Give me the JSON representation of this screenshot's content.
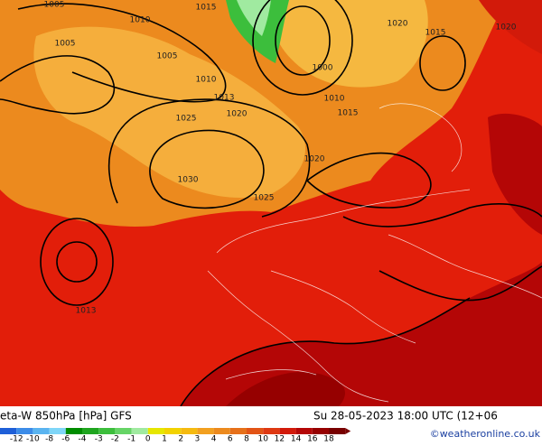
{
  "header": {
    "title": "eta-W 850hPa [hPa] GFS",
    "timestamp": "Su 28-05-2023 18:00 UTC (12+06",
    "credit": "©weatheronline.co.uk"
  },
  "colorbar": {
    "labels": [
      "-12",
      "-10",
      "-8",
      "-6",
      "-4",
      "-3",
      "-2",
      "-1",
      "0",
      "1",
      "2",
      "3",
      "4",
      "6",
      "8",
      "10",
      "12",
      "14",
      "16",
      "18"
    ],
    "colors": [
      "#1e5fd8",
      "#3c8ce8",
      "#5ab4f0",
      "#7fd6f8",
      "#008c00",
      "#1fa51f",
      "#3cbe3c",
      "#66d466",
      "#a0eaa0",
      "#e6e600",
      "#f2d200",
      "#f5ba10",
      "#f2a020",
      "#ec8a1e",
      "#e6701a",
      "#e25416",
      "#de3812",
      "#d21a0a",
      "#b40606",
      "#960000",
      "#780000"
    ]
  },
  "map": {
    "contour_labels": [
      "1005",
      "1010",
      "1015",
      "1005",
      "1005",
      "1000",
      "1020",
      "1010",
      "1013",
      "1020",
      "1025",
      "1010",
      "1015",
      "1020",
      "1030",
      "1025",
      "1013",
      "1020",
      "1015"
    ]
  }
}
